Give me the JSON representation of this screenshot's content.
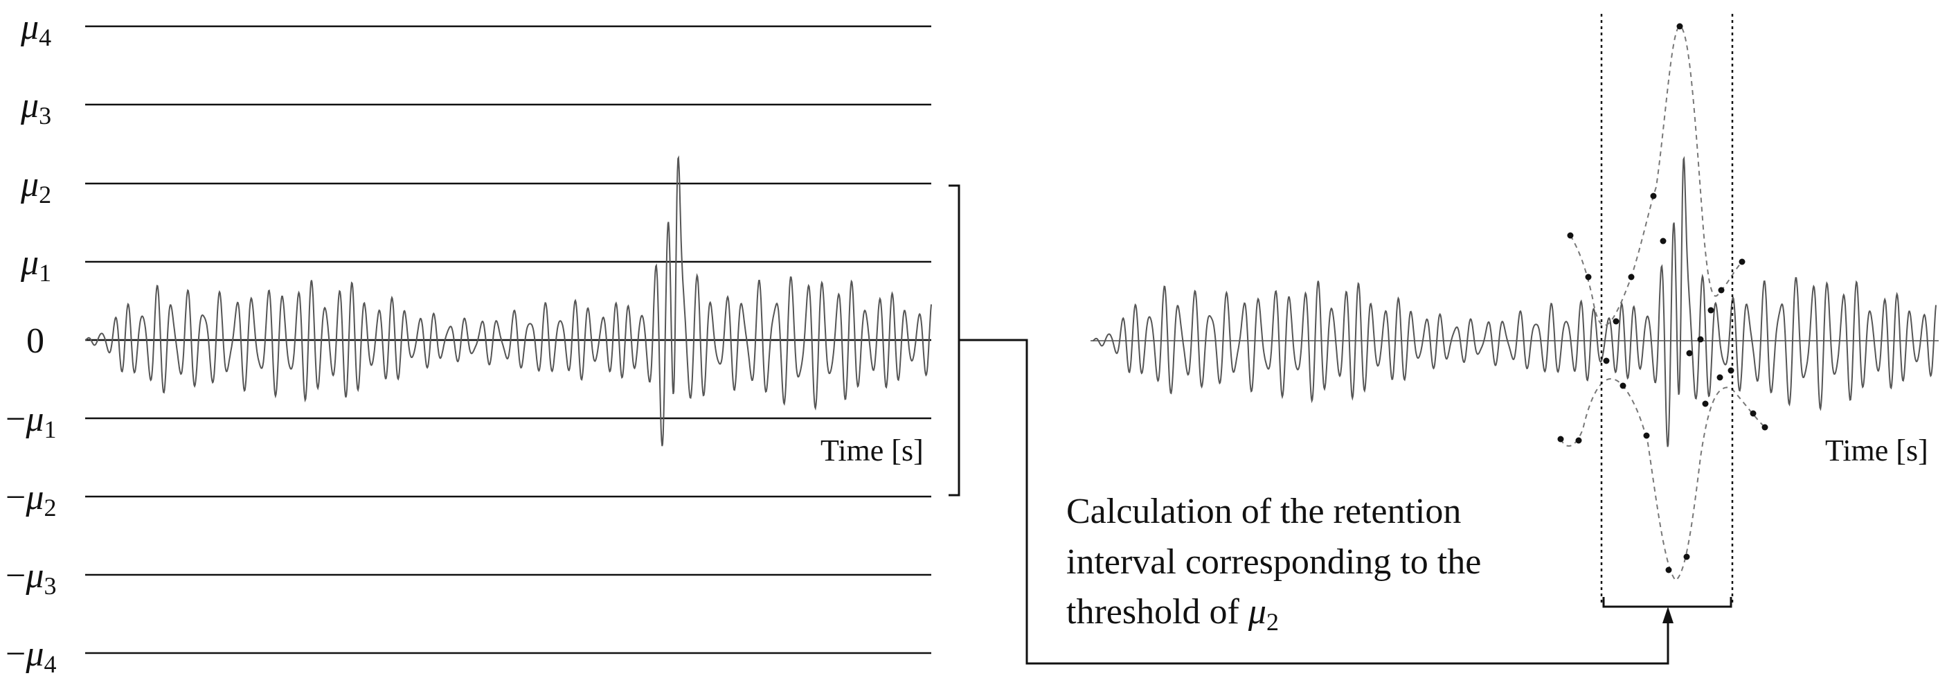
{
  "left_panel": {
    "levels": [
      {
        "key": "mu4",
        "sign": "",
        "sub": "4"
      },
      {
        "key": "mu3",
        "sign": "",
        "sub": "3"
      },
      {
        "key": "mu2",
        "sign": "",
        "sub": "2"
      },
      {
        "key": "mu1",
        "sign": "",
        "sub": "1"
      },
      {
        "key": "zero",
        "sign": "",
        "sub": ""
      },
      {
        "key": "neg_mu1",
        "sign": "−",
        "sub": "1"
      },
      {
        "key": "neg_mu2",
        "sign": "−",
        "sub": "2"
      },
      {
        "key": "neg_mu3",
        "sign": "−",
        "sub": "3"
      },
      {
        "key": "neg_mu4",
        "sign": "−",
        "sub": "4"
      }
    ],
    "mu_symbol": "μ",
    "zero_label": "0",
    "time_label": "Time [s]"
  },
  "right_panel": {
    "time_label": "Time [s]",
    "caption_lines": [
      "Calculation of the retention",
      "interval corresponding to the",
      "threshold of "
    ],
    "caption_mu": "μ",
    "caption_sub": "2"
  },
  "colors": {
    "lines": "#111111",
    "signal": "#555555",
    "envelope": "#777777"
  }
}
